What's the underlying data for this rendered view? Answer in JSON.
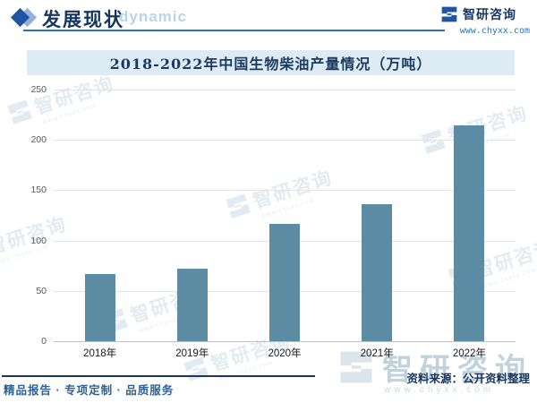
{
  "header": {
    "title": "发展现状",
    "subtitle_watermark": "dynamic",
    "brand_name": "智研咨询",
    "brand_url": "www.chyxx.com"
  },
  "chart_data": {
    "type": "bar",
    "title": "2018-2022年中国生物柴油产量情况（万吨）",
    "categories": [
      "2018年",
      "2019年",
      "2020年",
      "2021年",
      "2022年"
    ],
    "values": [
      67,
      72,
      117,
      136,
      214
    ],
    "xlabel": "",
    "ylabel": "",
    "ylim": [
      0,
      250
    ],
    "yticks": [
      0,
      50,
      100,
      150,
      200,
      250
    ],
    "grid": true,
    "legend": false,
    "bar_color": "#5b8ca4"
  },
  "watermark": {
    "text": "智研咨询",
    "sub": "www.chyxx.com"
  },
  "footer": {
    "left": "精品报告 · 专项定制 · 品质服务",
    "source": "资料来源：公开资料整理"
  },
  "colors": {
    "accent_navy": "#17365d",
    "header_rule_blue": "#2e74b5",
    "title_band_bg": "#ddebf5",
    "bar": "#5b8ca4",
    "watermark": "#9dbfd4"
  }
}
